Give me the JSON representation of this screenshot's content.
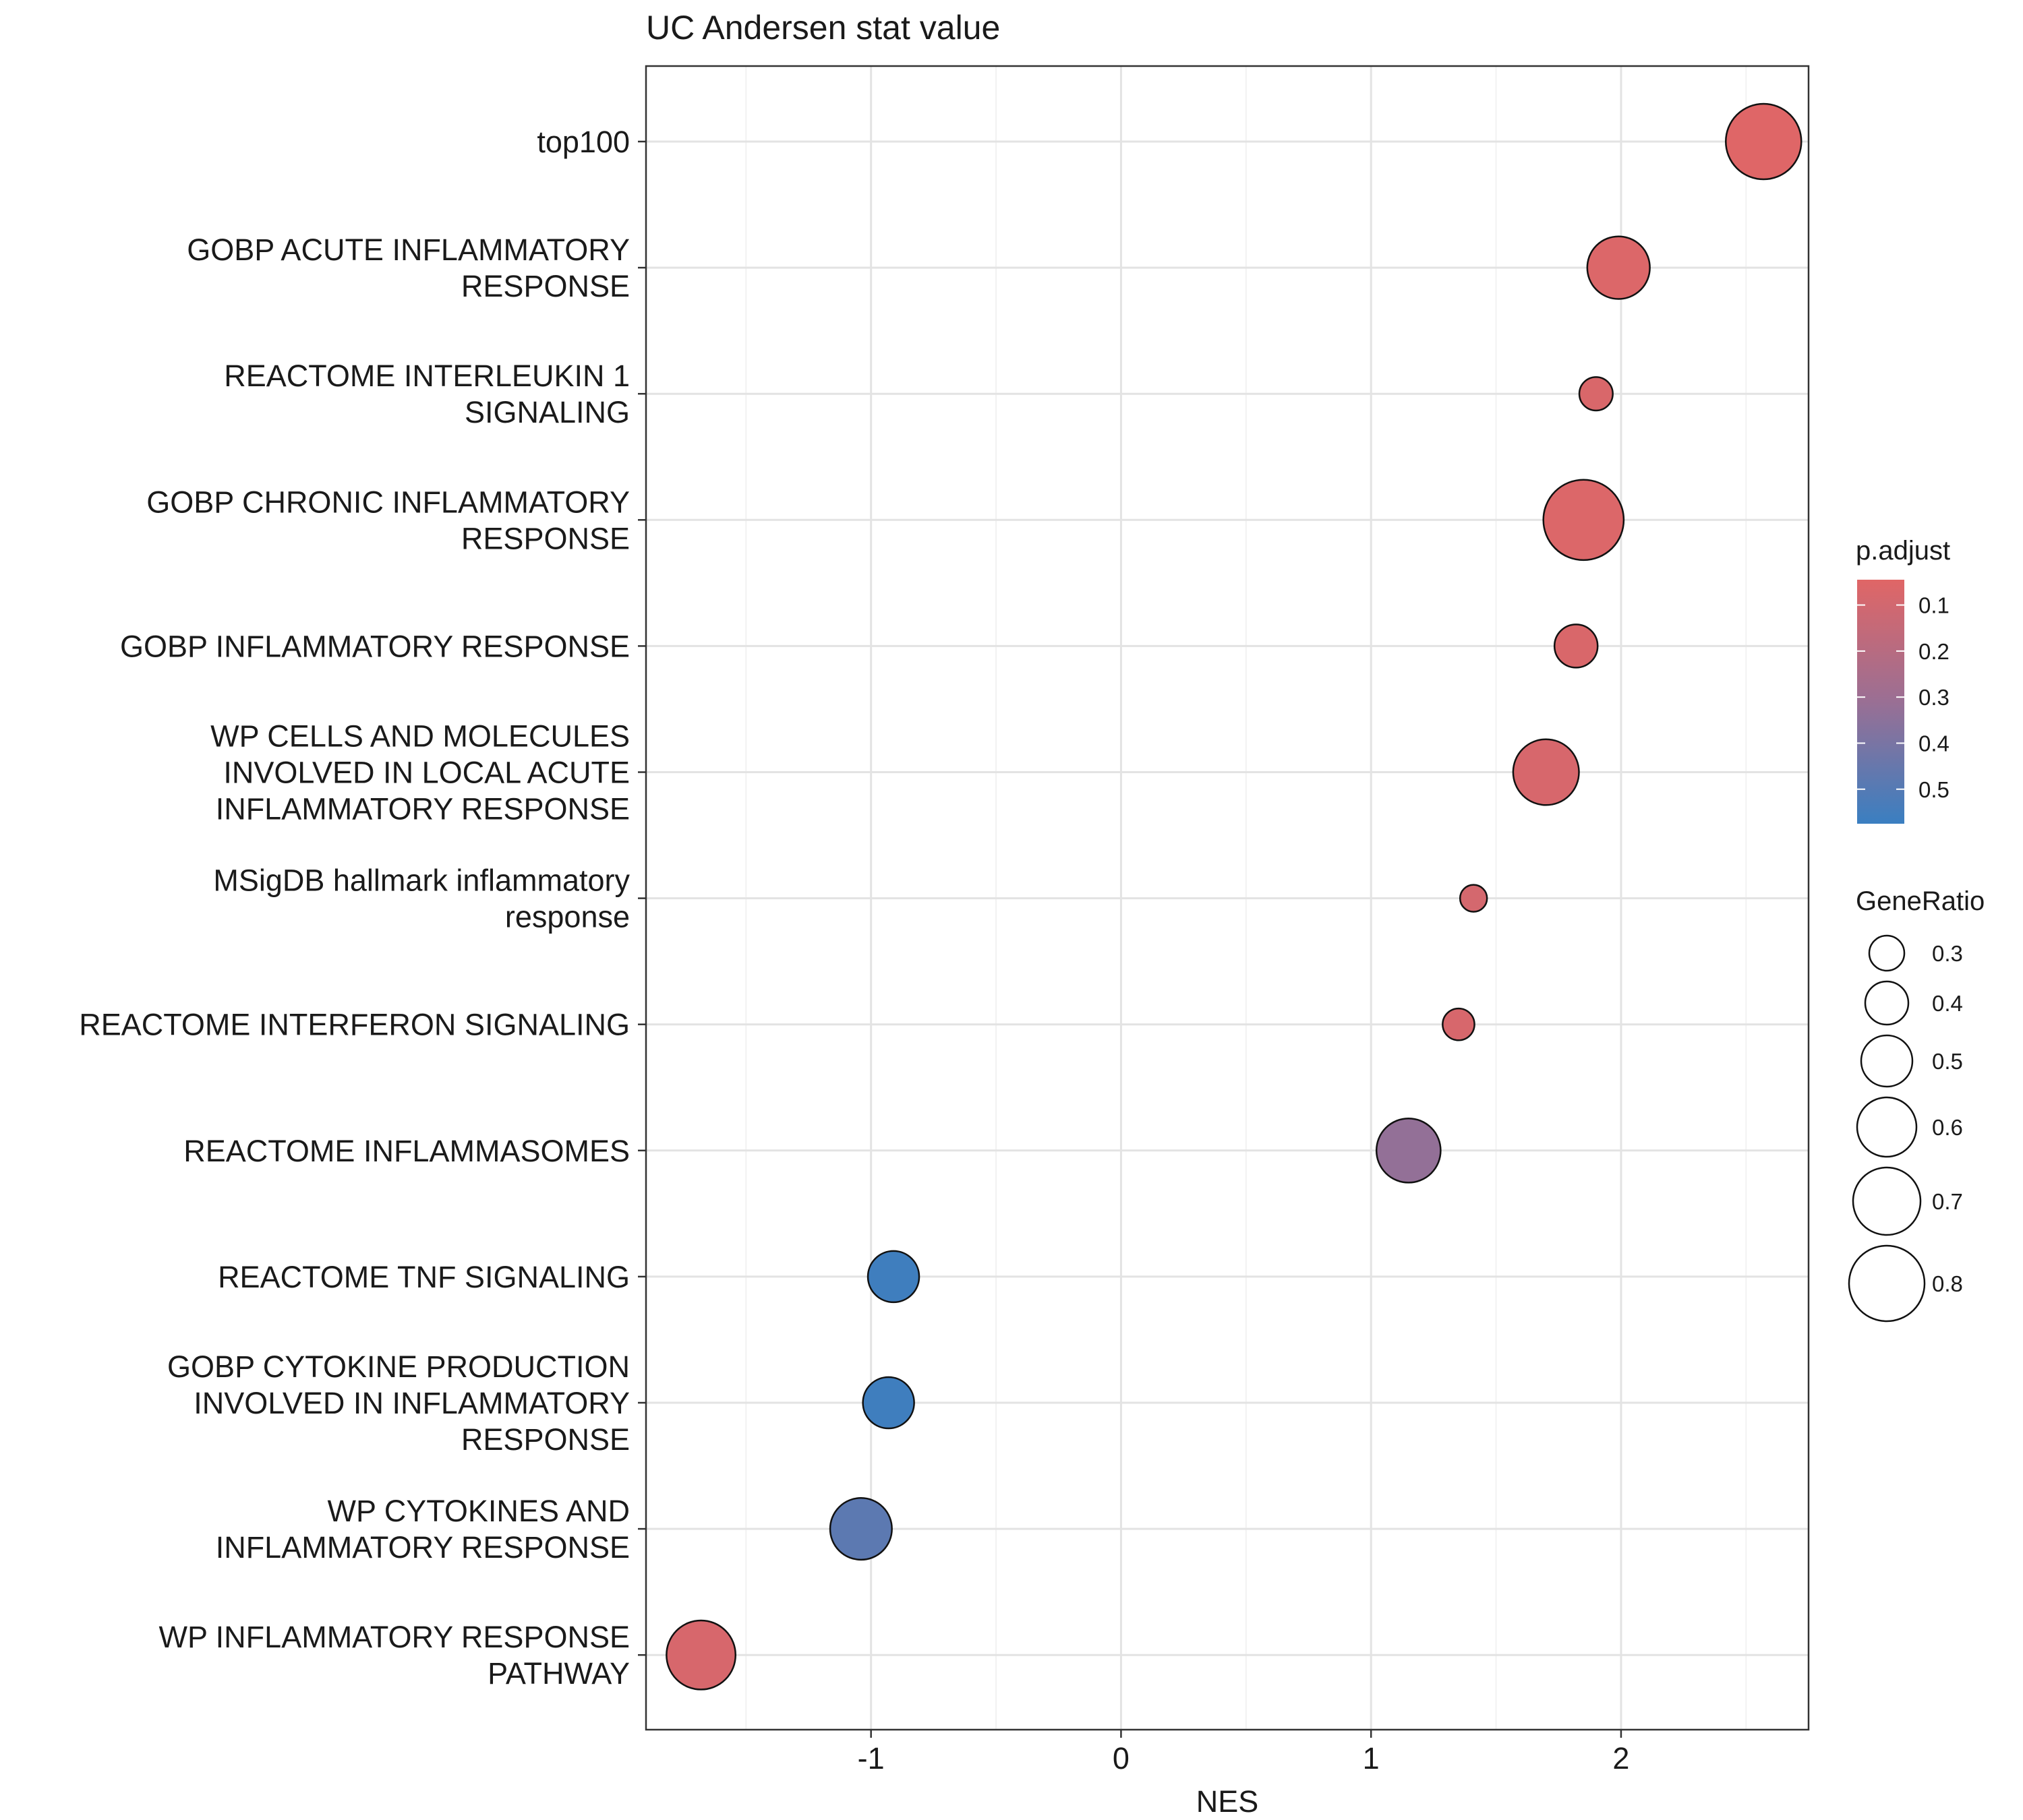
{
  "chart_data": {
    "type": "scatter",
    "title": "UC Andersen stat value",
    "xlabel": "NES",
    "ylabel": "",
    "xlim": [
      -1.9,
      2.75
    ],
    "xticks": [
      -1,
      0,
      1,
      2
    ],
    "xtick_labels": [
      "-1",
      "0",
      "1",
      "2"
    ],
    "grid": true,
    "categories": [
      "top100",
      "GOBP ACUTE INFLAMMATORY RESPONSE",
      "REACTOME INTERLEUKIN 1 SIGNALING",
      "GOBP CHRONIC INFLAMMATORY RESPONSE",
      "GOBP INFLAMMATORY RESPONSE",
      "WP CELLS AND MOLECULES INVOLVED IN LOCAL ACUTE INFLAMMATORY RESPONSE",
      "MSigDB hallmark inflammatory response",
      "REACTOME INTERFERON SIGNALING",
      "REACTOME INFLAMMASOMES",
      "REACTOME TNF SIGNALING",
      "GOBP CYTOKINE PRODUCTION INVOLVED IN INFLAMMATORY RESPONSE",
      "WP CYTOKINES AND INFLAMMATORY RESPONSE",
      "WP INFLAMMATORY RESPONSE PATHWAY"
    ],
    "category_lines": [
      [
        "top100"
      ],
      [
        "GOBP ACUTE INFLAMMATORY",
        "RESPONSE"
      ],
      [
        "REACTOME INTERLEUKIN 1",
        "SIGNALING"
      ],
      [
        "GOBP CHRONIC INFLAMMATORY",
        "RESPONSE"
      ],
      [
        "GOBP INFLAMMATORY RESPONSE"
      ],
      [
        "WP CELLS AND MOLECULES",
        "INVOLVED IN LOCAL ACUTE",
        "INFLAMMATORY RESPONSE"
      ],
      [
        "MSigDB hallmark inflammatory",
        "response"
      ],
      [
        "REACTOME INTERFERON SIGNALING"
      ],
      [
        "REACTOME INFLAMMASOMES"
      ],
      [
        "REACTOME TNF SIGNALING"
      ],
      [
        "GOBP CYTOKINE PRODUCTION",
        "INVOLVED IN INFLAMMATORY",
        "RESPONSE"
      ],
      [
        "WP CYTOKINES AND",
        "INFLAMMATORY RESPONSE"
      ],
      [
        "WP INFLAMMATORY RESPONSE",
        "PATHWAY"
      ]
    ],
    "points": [
      {
        "nes": 2.57,
        "p_adjust": 0.05,
        "gene_ratio": 0.8
      },
      {
        "nes": 1.99,
        "p_adjust": 0.06,
        "gene_ratio": 0.64
      },
      {
        "nes": 1.9,
        "p_adjust": 0.07,
        "gene_ratio": 0.28
      },
      {
        "nes": 1.85,
        "p_adjust": 0.06,
        "gene_ratio": 0.86
      },
      {
        "nes": 1.82,
        "p_adjust": 0.07,
        "gene_ratio": 0.4
      },
      {
        "nes": 1.7,
        "p_adjust": 0.08,
        "gene_ratio": 0.68
      },
      {
        "nes": 1.41,
        "p_adjust": 0.09,
        "gene_ratio": 0.2
      },
      {
        "nes": 1.35,
        "p_adjust": 0.08,
        "gene_ratio": 0.26
      },
      {
        "nes": 1.15,
        "p_adjust": 0.33,
        "gene_ratio": 0.66
      },
      {
        "nes": -0.91,
        "p_adjust": 0.56,
        "gene_ratio": 0.5
      },
      {
        "nes": -0.93,
        "p_adjust": 0.56,
        "gene_ratio": 0.5
      },
      {
        "nes": -1.04,
        "p_adjust": 0.48,
        "gene_ratio": 0.63
      },
      {
        "nes": -1.68,
        "p_adjust": 0.08,
        "gene_ratio": 0.72
      }
    ],
    "color_legend": {
      "title": "p.adjust",
      "ticks": [
        0.1,
        0.2,
        0.3,
        0.4,
        0.5
      ],
      "tick_labels": [
        "0.1",
        "0.2",
        "0.3",
        "0.4",
        "0.5"
      ],
      "range": [
        0.045,
        0.575
      ],
      "low_color": "#e06666",
      "high_color": "#3a7fc1"
    },
    "size_legend": {
      "title": "GeneRatio",
      "values": [
        0.3,
        0.4,
        0.5,
        0.6,
        0.7,
        0.8
      ],
      "labels": [
        "0.3",
        "0.4",
        "0.5",
        "0.6",
        "0.7",
        "0.8"
      ]
    }
  }
}
